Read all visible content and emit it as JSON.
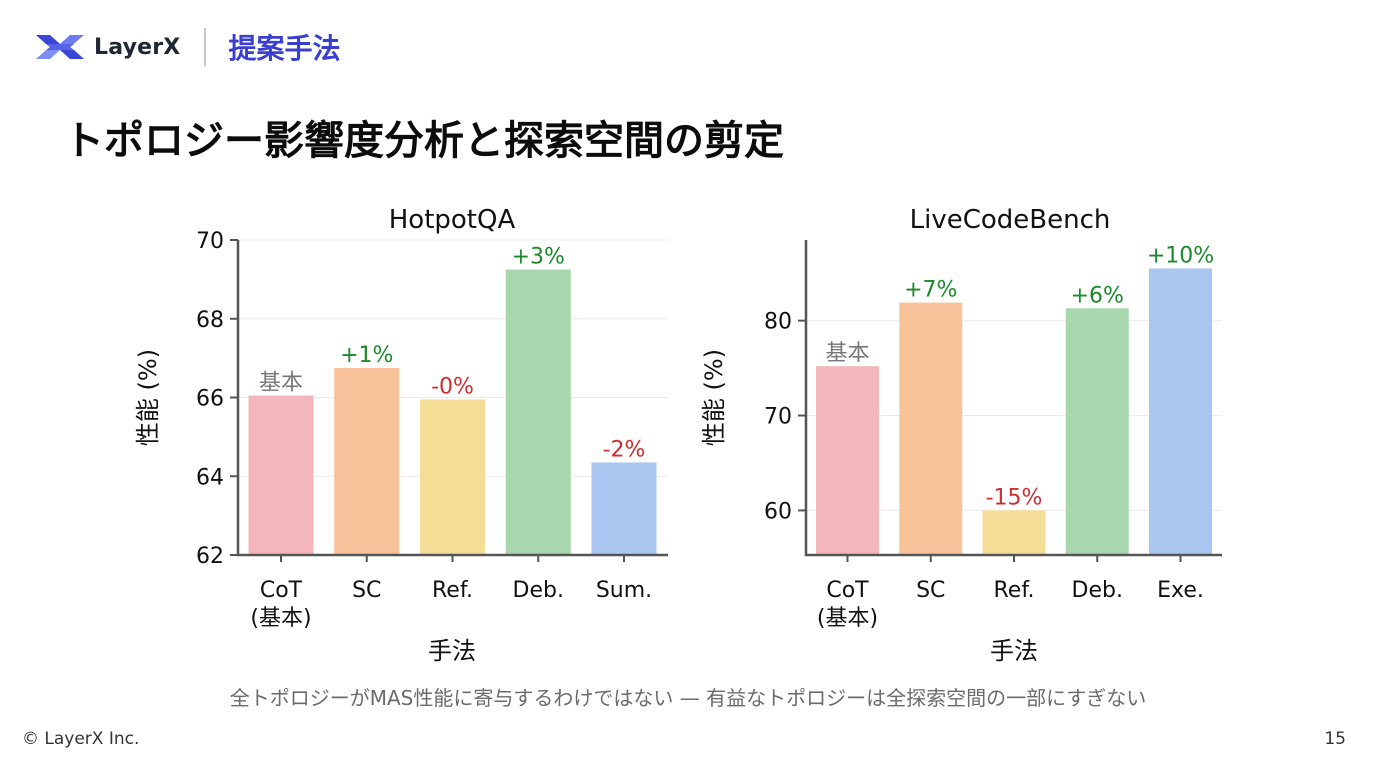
{
  "header": {
    "brand": "LayerX",
    "section": "提案手法"
  },
  "title": "トポロジー影響度分析と探索空間の剪定",
  "caption": "全トポロジーがMAS性能に寄与するわけではない — 有益なトポロジーは全探索空間の一部にすぎない",
  "footer": {
    "copyright": "© LayerX Inc.",
    "page": "15"
  },
  "chart_data": [
    {
      "type": "bar",
      "title": "HotpotQA",
      "xlabel": "手法",
      "ylabel": "性能 (%)",
      "ylim": [
        62,
        70
      ],
      "yticks": [
        62,
        64,
        66,
        68,
        70
      ],
      "categories": [
        "CoT\n(基本)",
        "SC",
        "Ref.",
        "Deb.",
        "Sum."
      ],
      "values": [
        66.05,
        66.75,
        65.95,
        69.25,
        64.35
      ],
      "labels": [
        "基本",
        "+1%",
        "-0%",
        "+3%",
        "-2%"
      ],
      "colors": [
        "#f3b7bb",
        "#f8c29a",
        "#f4dd96",
        "#a8d7ae",
        "#a9c6f0"
      ],
      "label_colors": [
        "#777777",
        "#1b8a2a",
        "#cc2f2f",
        "#1b8a2a",
        "#cc2f2f"
      ],
      "grid": true
    },
    {
      "type": "bar",
      "title": "LiveCodeBench",
      "xlabel": "手法",
      "ylabel": "性能 (%)",
      "ylim": [
        55.3,
        88.5
      ],
      "yticks": [
        60,
        70,
        80
      ],
      "categories": [
        "CoT\n(基本)",
        "SC",
        "Ref.",
        "Deb.",
        "Exe."
      ],
      "values": [
        75.2,
        81.9,
        60.0,
        81.3,
        85.5
      ],
      "labels": [
        "基本",
        "+7%",
        "-15%",
        "+6%",
        "+10%"
      ],
      "colors": [
        "#f3b7bb",
        "#f8c29a",
        "#f4dd96",
        "#a8d7ae",
        "#a9c6f0"
      ],
      "label_colors": [
        "#777777",
        "#1b8a2a",
        "#cc2f2f",
        "#1b8a2a",
        "#1b8a2a"
      ],
      "grid": true
    }
  ]
}
